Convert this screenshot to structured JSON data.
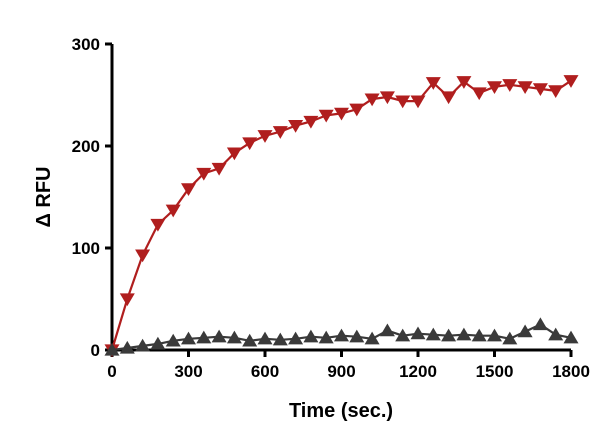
{
  "chart_data": {
    "type": "line",
    "title": "",
    "xlabel": "Time (sec.)",
    "ylabel": "Δ RFU",
    "xlim": [
      0,
      1800
    ],
    "ylim": [
      0,
      300
    ],
    "x_ticks": [
      "0",
      "300",
      "600",
      "900",
      "1200",
      "1500",
      "1800"
    ],
    "y_ticks": [
      "0",
      "100",
      "200",
      "300"
    ],
    "grid": false,
    "legend": "none",
    "series": [
      {
        "color": "#b01e1e",
        "marker": "triangle-down",
        "x": [
          0,
          60,
          120,
          180,
          240,
          300,
          360,
          420,
          480,
          540,
          600,
          660,
          720,
          780,
          840,
          900,
          960,
          1020,
          1080,
          1140,
          1200,
          1260,
          1320,
          1380,
          1440,
          1500,
          1560,
          1620,
          1680,
          1740,
          1800
        ],
        "y": [
          0,
          50,
          93,
          123,
          137,
          158,
          173,
          178,
          193,
          203,
          210,
          214,
          220,
          224,
          230,
          232,
          236,
          246,
          248,
          244,
          244,
          262,
          248,
          263,
          252,
          258,
          260,
          258,
          256,
          254,
          264
        ]
      },
      {
        "color": "#3a3a3a",
        "marker": "triangle-up",
        "x": [
          0,
          60,
          120,
          180,
          240,
          300,
          360,
          420,
          480,
          540,
          600,
          660,
          720,
          780,
          840,
          900,
          960,
          1020,
          1080,
          1140,
          1200,
          1260,
          1320,
          1380,
          1440,
          1500,
          1560,
          1620,
          1680,
          1740,
          1800
        ],
        "y": [
          0,
          2,
          4,
          6,
          9,
          11,
          12,
          13,
          12,
          9,
          11,
          10,
          11,
          13,
          12,
          14,
          13,
          11,
          19,
          14,
          16,
          15,
          14,
          15,
          14,
          14,
          11,
          18,
          25,
          15,
          12
        ]
      }
    ]
  }
}
